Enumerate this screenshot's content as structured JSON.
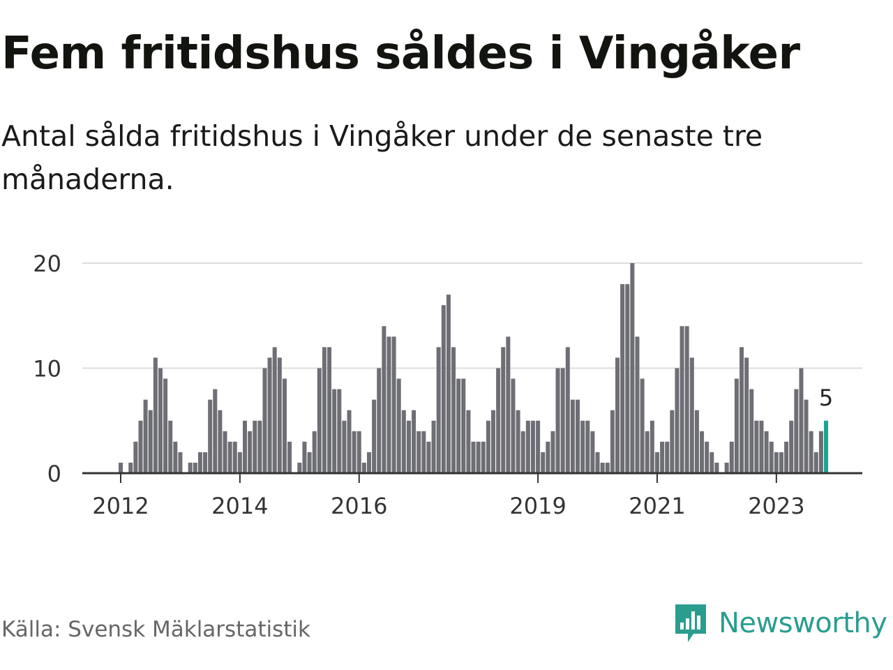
{
  "header": {
    "title": "Fem fritidshus såldes i Vingåker",
    "subtitle": "Antal sålda fritidshus i Vingåker under de senaste tre månaderna."
  },
  "footer": {
    "source": "Källa: Svensk Mäklarstatistik",
    "brand": "Newsworthy",
    "brand_icon": "bar-chart-speech-bubble-icon"
  },
  "colors": {
    "bar": "#6e6e75",
    "highlight": "#1aa393",
    "grid": "#dddddd",
    "axis": "#333333",
    "text": "#333333",
    "brand": "#2a9d8f"
  },
  "chart_data": {
    "type": "bar",
    "x_unit": "month",
    "start_month": "2012-01",
    "x_ticks": [
      "2012",
      "2014",
      "2016",
      "2019",
      "2021",
      "2023"
    ],
    "y_ticks": [
      0,
      10,
      20
    ],
    "ylim": [
      0,
      20
    ],
    "grid": true,
    "highlight_label": "5",
    "values": [
      1,
      0,
      1,
      3,
      5,
      7,
      6,
      11,
      10,
      9,
      5,
      3,
      2,
      0,
      1,
      1,
      2,
      2,
      7,
      8,
      6,
      4,
      3,
      3,
      2,
      5,
      4,
      5,
      5,
      10,
      11,
      12,
      11,
      9,
      3,
      0,
      1,
      3,
      2,
      4,
      10,
      12,
      12,
      8,
      8,
      5,
      6,
      4,
      4,
      1,
      2,
      7,
      10,
      14,
      13,
      13,
      9,
      6,
      5,
      6,
      4,
      4,
      3,
      5,
      12,
      16,
      17,
      12,
      9,
      9,
      6,
      3,
      3,
      3,
      5,
      6,
      10,
      12,
      13,
      9,
      6,
      4,
      5,
      5,
      5,
      2,
      3,
      4,
      10,
      10,
      12,
      7,
      7,
      5,
      5,
      4,
      2,
      1,
      1,
      6,
      11,
      18,
      18,
      20,
      13,
      9,
      4,
      5,
      2,
      3,
      3,
      6,
      10,
      14,
      14,
      11,
      6,
      4,
      3,
      2,
      1,
      0,
      1,
      3,
      9,
      12,
      11,
      8,
      5,
      5,
      4,
      3,
      2,
      2,
      3,
      5,
      8,
      10,
      7,
      4,
      2,
      4,
      5
    ]
  }
}
